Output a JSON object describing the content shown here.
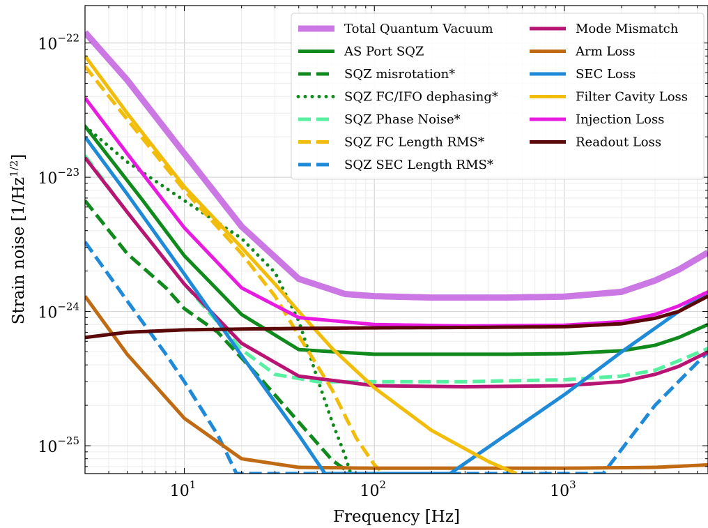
{
  "chart_data": {
    "type": "line",
    "title": "",
    "xlabel": "Frequency [Hz]",
    "ylabel_main": "Strain noise [1/Hz",
    "ylabel_sup": "1/2",
    "ylabel_end": "]",
    "xscale": "log",
    "yscale": "log",
    "xlim": [
      3,
      5700
    ],
    "ylim": [
      6.2e-26,
      1.9e-22
    ],
    "grid": true,
    "legend_position": "top-right",
    "x_ticks": [
      {
        "value": 10,
        "base": "10",
        "exp": "1"
      },
      {
        "value": 100,
        "base": "10",
        "exp": "2"
      },
      {
        "value": 1000,
        "base": "10",
        "exp": "3"
      }
    ],
    "y_ticks": [
      {
        "value": 1e-22,
        "base": "10",
        "exp": "−22"
      },
      {
        "value": 1e-23,
        "base": "10",
        "exp": "−23"
      },
      {
        "value": 1e-24,
        "base": "10",
        "exp": "−24"
      },
      {
        "value": 1e-25,
        "base": "10",
        "exp": "−25"
      }
    ],
    "series": [
      {
        "name": "Total Quantum Vacuum",
        "color": "#cc78e4",
        "dash": "solid",
        "width": 9,
        "x": [
          3,
          5,
          10,
          20,
          40,
          70,
          100,
          200,
          500,
          1000,
          2000,
          3000,
          4000,
          5700
        ],
        "y": [
          1.2e-22,
          5.3e-23,
          1.5e-23,
          4.3e-24,
          1.75e-24,
          1.35e-24,
          1.3e-24,
          1.27e-24,
          1.27e-24,
          1.29e-24,
          1.4e-24,
          1.7e-24,
          2.05e-24,
          2.75e-24
        ]
      },
      {
        "name": "AS Port SQZ",
        "color": "#108a1c",
        "dash": "solid",
        "width": 5,
        "x": [
          3,
          6,
          10,
          20,
          40,
          100,
          500,
          1000,
          2000,
          3000,
          4000,
          5700
        ],
        "y": [
          2.4e-23,
          6.8e-24,
          2.6e-24,
          9.5e-25,
          5.2e-25,
          4.8e-25,
          4.8e-25,
          4.85e-25,
          5.1e-25,
          5.6e-25,
          6.4e-25,
          8e-25
        ]
      },
      {
        "name": "SQZ misrotation*",
        "color": "#108a1c",
        "dash": "dashed",
        "width": 5,
        "x": [
          3,
          5,
          8,
          10,
          15,
          25,
          40,
          60,
          75
        ],
        "y": [
          6.7e-24,
          2.7e-24,
          1.5e-24,
          1.05e-24,
          7e-25,
          3.2e-25,
          1.5e-25,
          7.8e-26,
          6.2e-26
        ]
      },
      {
        "name": "SQZ FC/IFO dephasing*",
        "color": "#108a1c",
        "dash": "dotted",
        "width": 5,
        "x": [
          3,
          5,
          10,
          20,
          30,
          40,
          50,
          60,
          70,
          75
        ],
        "y": [
          2.4e-23,
          1.3e-23,
          6.7e-24,
          3.5e-24,
          1.95e-24,
          8.5e-25,
          3.2e-25,
          1.5e-25,
          8.5e-26,
          6.2e-26
        ]
      },
      {
        "name": "SQZ Phase Noise*",
        "color": "#57f0a0",
        "dash": "dashed",
        "width": 5,
        "x": [
          3,
          5,
          10,
          20,
          30,
          50,
          100,
          300,
          1000,
          2000,
          3000,
          4000,
          5700
        ],
        "y": [
          1.45e-23,
          5.5e-24,
          1.6e-24,
          5.2e-25,
          3.4e-25,
          3e-25,
          3e-25,
          3e-25,
          3.1e-25,
          3.3e-25,
          3.65e-25,
          4.3e-25,
          5.3e-25
        ]
      },
      {
        "name": "SQZ FC Length RMS*",
        "color": "#f2bd0a",
        "dash": "dashed",
        "width": 5,
        "x": [
          3,
          5,
          10,
          20,
          30,
          40,
          60,
          80,
          100,
          112
        ],
        "y": [
          6.7e-23,
          2.7e-23,
          8e-24,
          2.7e-24,
          1.3e-24,
          6.6e-25,
          2.6e-25,
          1.15e-25,
          7.2e-26,
          6.2e-26
        ]
      },
      {
        "name": "SQZ SEC Length RMS*",
        "color": "#1f8ad8",
        "dash": "dashed",
        "width": 5,
        "x": [
          3,
          5,
          8,
          10,
          15,
          18.8,
          1600,
          3000,
          5700
        ],
        "y": [
          3.3e-24,
          1.2e-24,
          4.8e-25,
          3e-25,
          1.2e-25,
          6.2e-26,
          6.2e-26,
          2e-25,
          5e-25
        ]
      },
      {
        "name": "Mode Mismatch",
        "color": "#b71474",
        "dash": "solid",
        "width": 5,
        "x": [
          3,
          5,
          10,
          20,
          40,
          100,
          300,
          1000,
          2000,
          3000,
          4000,
          5700
        ],
        "y": [
          1.4e-23,
          5.5e-24,
          1.6e-24,
          5.8e-25,
          3.3e-25,
          2.8e-25,
          2.75e-25,
          2.8e-25,
          3e-25,
          3.4e-25,
          3.9e-25,
          5e-25
        ]
      },
      {
        "name": "Arm Loss",
        "color": "#c06a14",
        "dash": "solid",
        "width": 5,
        "x": [
          3,
          5,
          10,
          20,
          40,
          100,
          1000,
          3000,
          5700
        ],
        "y": [
          1.3e-24,
          4.8e-25,
          1.6e-25,
          8e-26,
          6.9e-26,
          6.8e-26,
          6.8e-26,
          6.9e-26,
          7.2e-26
        ]
      },
      {
        "name": "SEC Loss",
        "color": "#1f8ad8",
        "dash": "solid",
        "width": 5,
        "x": [
          3,
          5,
          10,
          15,
          20,
          40,
          55,
          250,
          1000,
          2000,
          3000,
          4000,
          5700
        ],
        "y": [
          2e-23,
          7.5e-24,
          1.9e-24,
          8.4e-25,
          4.7e-25,
          1.2e-25,
          6.2e-26,
          6.2e-26,
          2.4e-25,
          5e-25,
          7.5e-25,
          1e-24,
          1.4e-24
        ]
      },
      {
        "name": "Filter Cavity Loss",
        "color": "#f2bd0a",
        "dash": "solid",
        "width": 5,
        "x": [
          3,
          5,
          10,
          20,
          30,
          40,
          60,
          100,
          200,
          400,
          560
        ],
        "y": [
          8e-23,
          3e-23,
          8.5e-24,
          3e-24,
          1.6e-24,
          1e-24,
          5.3e-25,
          2.7e-25,
          1.3e-25,
          7.6e-26,
          6.2e-26
        ]
      },
      {
        "name": "Injection Loss",
        "color": "#e81ce0",
        "dash": "solid",
        "width": 5,
        "x": [
          3,
          5,
          10,
          20,
          40,
          100,
          300,
          1000,
          2000,
          3000,
          4000,
          5700
        ],
        "y": [
          3.9e-23,
          1.5e-23,
          4.2e-24,
          1.5e-24,
          9e-25,
          8e-25,
          7.8e-25,
          7.9e-25,
          8.4e-25,
          9.5e-25,
          1.1e-24,
          1.4e-24
        ]
      },
      {
        "name": "Readout Loss",
        "color": "#5a0808",
        "dash": "solid",
        "width": 5,
        "x": [
          3,
          5,
          10,
          20,
          50,
          100,
          300,
          1000,
          2000,
          3000,
          4000,
          5700
        ],
        "y": [
          6.4e-25,
          7e-25,
          7.3e-25,
          7.4e-25,
          7.5e-25,
          7.55e-25,
          7.6e-25,
          7.7e-25,
          8.1e-25,
          8.9e-25,
          1e-24,
          1.3e-24
        ]
      }
    ]
  }
}
